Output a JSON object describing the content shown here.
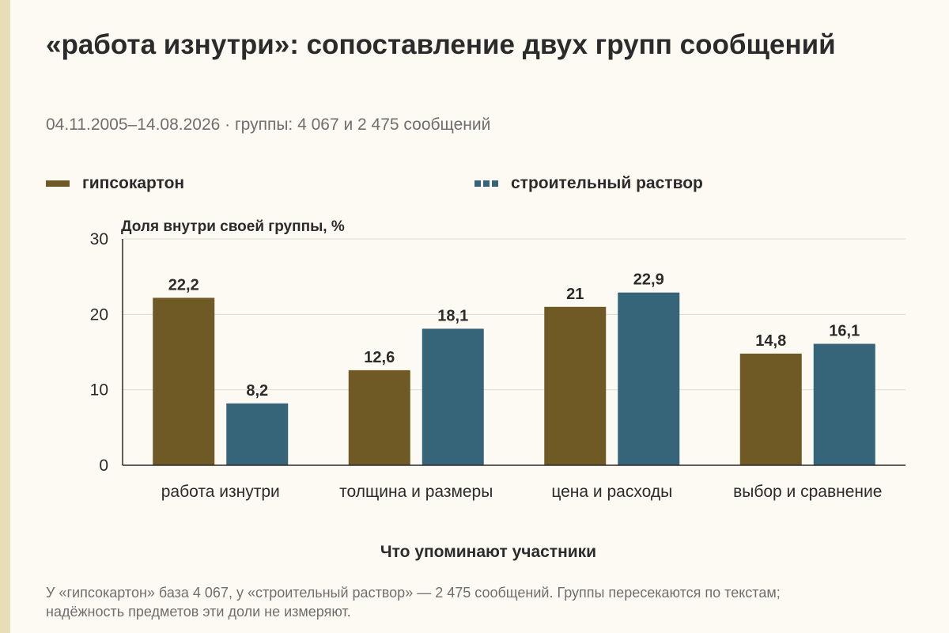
{
  "title": "«работа изнутри»: сопоставление двух групп сообщений",
  "subtitle": "04.11.2005–14.08.2026 · группы: 4 067 и 2 475 сообщений",
  "footnote": "У «гипсокартон» база 4 067, у «строительный раствор» — 2 475 сообщений. Группы пересекаются по текстам; надёжность предметов эти доли не измеряют.",
  "colors": {
    "series_a": "#6f5a26",
    "series_b": "#366479",
    "grid": "#dedbd2",
    "axis": "#2b2b2b"
  },
  "chart_data": {
    "type": "bar",
    "title": "«работа изнутри»: сопоставление двух групп сообщений",
    "ylabel": "Доля внутри своей группы, %",
    "xlabel": "Что упоминают участники",
    "ylim": [
      0,
      30
    ],
    "yticks": [
      0,
      10,
      20,
      30
    ],
    "grid": true,
    "legend_position": "top",
    "categories": [
      "работа изнутри",
      "толщина и размеры",
      "цена и расходы",
      "выбор и сравнение"
    ],
    "series": [
      {
        "name": "гипсокартон",
        "values": [
          22.2,
          12.6,
          21,
          14.8
        ],
        "labels": [
          "22,2",
          "12,6",
          "21",
          "14,8"
        ]
      },
      {
        "name": "строительный раствор",
        "values": [
          8.2,
          18.1,
          22.9,
          16.1
        ],
        "labels": [
          "8,2",
          "18,1",
          "22,9",
          "16,1"
        ]
      }
    ]
  }
}
